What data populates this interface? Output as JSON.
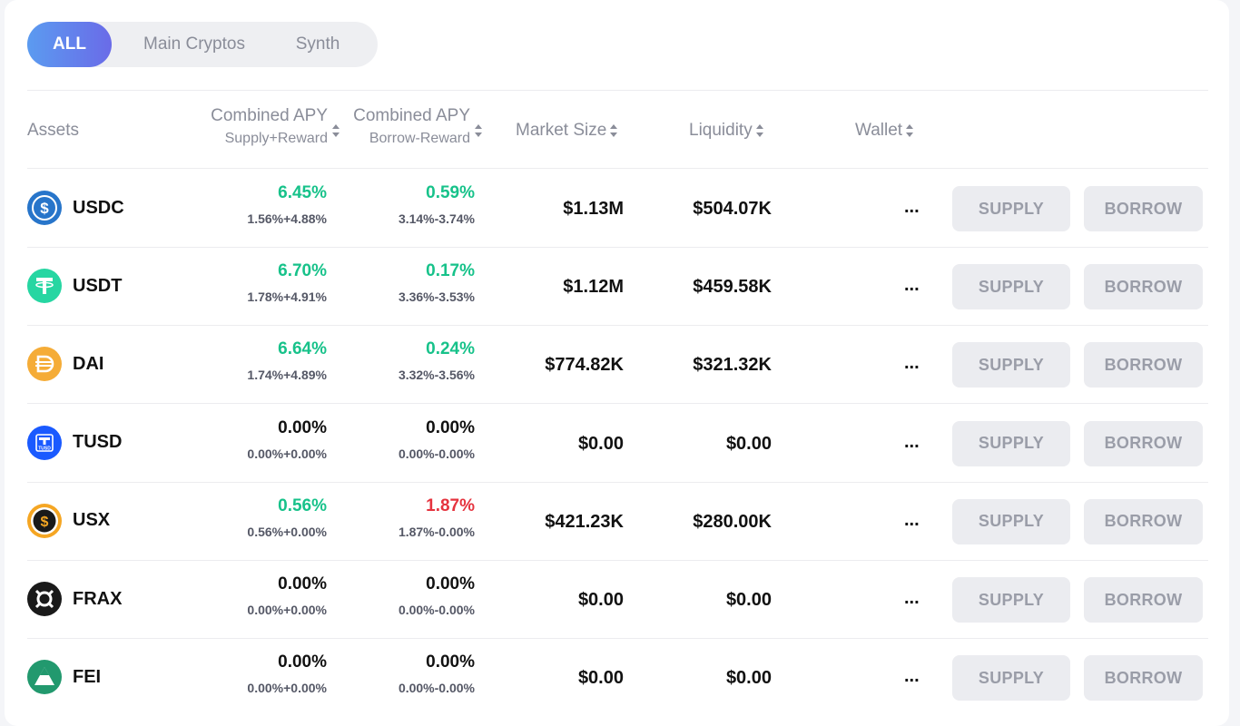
{
  "filters": {
    "all": "ALL",
    "main": "Main Cryptos",
    "synth": "Synth"
  },
  "headers": {
    "assets": "Assets",
    "supply_apy": "Combined APY",
    "supply_apy_sub": "Supply+Reward",
    "borrow_apy": "Combined APY",
    "borrow_apy_sub": "Borrow-Reward",
    "market_size": "Market Size",
    "liquidity": "Liquidity",
    "wallet": "Wallet"
  },
  "buttons": {
    "supply": "SUPPLY",
    "borrow": "BORROW"
  },
  "rows": [
    {
      "name": "USDC",
      "icon": "usdc-icon",
      "color": "#2775ca",
      "supply_apy": "6.45%",
      "supply_detail": "1.56%+4.88%",
      "borrow_apy": "0.59%",
      "borrow_detail": "3.14%-3.74%",
      "market_size": "$1.13M",
      "liquidity": "$504.07K",
      "wallet": "...",
      "supply_color": "green",
      "borrow_color": "green"
    },
    {
      "name": "USDT",
      "icon": "usdt-icon",
      "color": "#26d6a2",
      "supply_apy": "6.70%",
      "supply_detail": "1.78%+4.91%",
      "borrow_apy": "0.17%",
      "borrow_detail": "3.36%-3.53%",
      "market_size": "$1.12M",
      "liquidity": "$459.58K",
      "wallet": "...",
      "supply_color": "green",
      "borrow_color": "green"
    },
    {
      "name": "DAI",
      "icon": "dai-icon",
      "color": "#f5ac37",
      "supply_apy": "6.64%",
      "supply_detail": "1.74%+4.89%",
      "borrow_apy": "0.24%",
      "borrow_detail": "3.32%-3.56%",
      "market_size": "$774.82K",
      "liquidity": "$321.32K",
      "wallet": "...",
      "supply_color": "green",
      "borrow_color": "green"
    },
    {
      "name": "TUSD",
      "icon": "tusd-icon",
      "color": "#1a5aff",
      "supply_apy": "0.00%",
      "supply_detail": "0.00%+0.00%",
      "borrow_apy": "0.00%",
      "borrow_detail": "0.00%-0.00%",
      "market_size": "$0.00",
      "liquidity": "$0.00",
      "wallet": "...",
      "supply_color": "black",
      "borrow_color": "black"
    },
    {
      "name": "USX",
      "icon": "usx-icon",
      "color": "#f5a623",
      "supply_apy": "0.56%",
      "supply_detail": "0.56%+0.00%",
      "borrow_apy": "1.87%",
      "borrow_detail": "1.87%-0.00%",
      "market_size": "$421.23K",
      "liquidity": "$280.00K",
      "wallet": "...",
      "supply_color": "green",
      "borrow_color": "red"
    },
    {
      "name": "FRAX",
      "icon": "frax-icon",
      "color": "#1a1a1a",
      "supply_apy": "0.00%",
      "supply_detail": "0.00%+0.00%",
      "borrow_apy": "0.00%",
      "borrow_detail": "0.00%-0.00%",
      "market_size": "$0.00",
      "liquidity": "$0.00",
      "wallet": "...",
      "supply_color": "black",
      "borrow_color": "black"
    },
    {
      "name": "FEI",
      "icon": "fei-icon",
      "color": "#22996e",
      "supply_apy": "0.00%",
      "supply_detail": "0.00%+0.00%",
      "borrow_apy": "0.00%",
      "borrow_detail": "0.00%-0.00%",
      "market_size": "$0.00",
      "liquidity": "$0.00",
      "wallet": "...",
      "supply_color": "black",
      "borrow_color": "black"
    }
  ]
}
